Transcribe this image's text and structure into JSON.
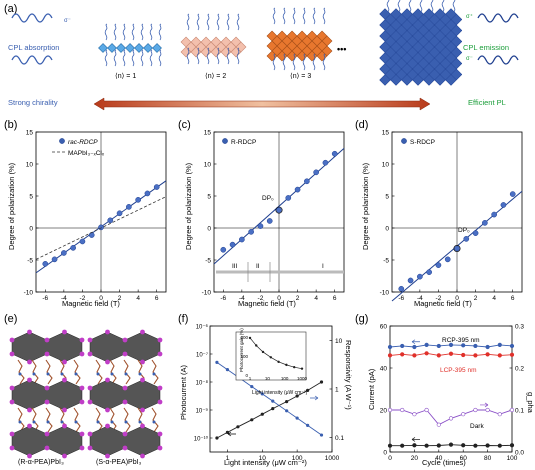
{
  "panel_letters": [
    "(a)",
    "(b)",
    "(c)",
    "(d)",
    "(e)",
    "(f)",
    "(g)"
  ],
  "panel_a": {
    "left_top": "CPL absorption",
    "left_bottom": "Strong chirality",
    "right_top": "CPL emission",
    "right_bottom": "Efficient PL",
    "n1": "⟨n⟩ = 1",
    "n2": "⟨n⟩ = 2",
    "n3": "⟨n⟩ = 3",
    "dots": "•••",
    "sigma_minus": "σ⁻",
    "sigma_plus": "σ⁺"
  },
  "panel_b": {
    "ylabel": "Degree of polarization (%)",
    "xlabel": "Magnetic field (T)",
    "legend_1": "rac-RDCP",
    "legend_2": "MAPbI₃₋ₓClₓ"
  },
  "panel_c": {
    "ylabel": "Degree of polarization (%)",
    "xlabel": "Magnetic field (T)",
    "legend_1": "R-RDCP",
    "annotation": "DP₀",
    "regions": [
      "III",
      "II",
      "I"
    ]
  },
  "panel_d": {
    "ylabel": "Degree of polarization (%)",
    "xlabel": "Magnetic field (T)",
    "legend_1": "S-RDCP",
    "annotation": "DP₀"
  },
  "panel_e": {
    "label_left": "(R-α-PEA)PbI₃",
    "label_right": "(S-α-PEA)PbI₃"
  },
  "panel_f": {
    "ylabel_left": "Photocurrent (A)",
    "ylabel_right": "Responsivity (A W⁻¹)",
    "xlabel": "Light intensity (μW cm⁻²)",
    "inset_ylabel": "Photocurrent gain (%)",
    "inset_xlabel": "Light intensity (μW cm⁻²)"
  },
  "panel_g": {
    "ylabel_left": "Current (pA)",
    "ylabel_right": "g_pha",
    "xlabel": "Cycle (times)",
    "series_rcp": "RCP-395 nm",
    "series_lcp": "LCP-395 nm",
    "series_dark": "Dark"
  },
  "colors": {
    "blue": "#3a5fb0",
    "red": "#e0302a",
    "purple": "#8a4fc7",
    "orange": "#e8772e",
    "green": "#1b9e3a",
    "navy": "#1f3f8f"
  },
  "chart_data": [
    {
      "panel": "b",
      "type": "scatter",
      "xlabel": "Magnetic field (T)",
      "ylabel": "Degree of polarization (%)",
      "xlim": [
        -7,
        7
      ],
      "ylim": [
        -10,
        15
      ],
      "x_ticks": [
        -6,
        -4,
        -2,
        0,
        2,
        4,
        6
      ],
      "y_ticks": [
        -10,
        -5,
        0,
        5,
        10,
        15
      ],
      "series": [
        {
          "name": "rac-RDCP",
          "x": [
            -6,
            -5,
            -4,
            -3,
            -2,
            -1,
            0,
            1,
            2,
            3,
            4,
            5,
            6
          ],
          "y": [
            -5.6,
            -4.9,
            -3.9,
            -3.1,
            -2.1,
            -1.1,
            0.1,
            1.2,
            2.3,
            3.3,
            4.4,
            5.4,
            6.4
          ]
        },
        {
          "name": "MAPbI₃₋ₓClₓ",
          "fit": true,
          "x": [
            -7,
            7
          ],
          "y": [
            -4.9,
            4.9
          ]
        }
      ]
    },
    {
      "panel": "c",
      "type": "scatter",
      "xlabel": "Magnetic field (T)",
      "ylabel": "Degree of polarization (%)",
      "xlim": [
        -7,
        7
      ],
      "ylim": [
        -10,
        15
      ],
      "x_ticks": [
        -6,
        -4,
        -2,
        0,
        2,
        4,
        6
      ],
      "y_ticks": [
        -10,
        -5,
        0,
        5,
        10,
        15
      ],
      "series": [
        {
          "name": "R-RDCP",
          "x": [
            -6,
            -5,
            -4,
            -3,
            -2,
            -1,
            0,
            1,
            2,
            3,
            4,
            5,
            6
          ],
          "y": [
            -3.4,
            -2.6,
            -1.8,
            -0.6,
            0.3,
            1.1,
            2.8,
            4.7,
            6.0,
            7.3,
            8.7,
            10.2,
            11.6
          ]
        }
      ]
    },
    {
      "panel": "d",
      "type": "scatter",
      "xlabel": "Magnetic field (T)",
      "ylabel": "Degree of polarization (%)",
      "xlim": [
        -7,
        7
      ],
      "ylim": [
        -10,
        15
      ],
      "x_ticks": [
        -6,
        -4,
        -2,
        0,
        2,
        4,
        6
      ],
      "y_ticks": [
        -10,
        -5,
        0,
        5,
        10,
        15
      ],
      "series": [
        {
          "name": "S-RDCP",
          "x": [
            -6,
            -5,
            -4,
            -3,
            -2,
            -1,
            0,
            1,
            2,
            3,
            4,
            5,
            6
          ],
          "y": [
            -9.5,
            -8.2,
            -7.6,
            -6.9,
            -5.8,
            -4.9,
            -3.2,
            -1.7,
            -0.8,
            0.8,
            2.1,
            3.6,
            5.3
          ]
        }
      ]
    },
    {
      "panel": "f",
      "type": "line",
      "xlabel": "Light intensity (μW cm⁻²)",
      "ylabel": "Photocurrent (A)",
      "x_ticks": [
        1,
        10,
        100,
        1000
      ],
      "y_ticks_left": [
        "10⁻¹⁰",
        "10⁻⁹",
        "10⁻⁸",
        "10⁻⁷",
        "10⁻⁶"
      ],
      "y_ticks_right": [
        "0.1",
        "1",
        "10"
      ],
      "series": [
        {
          "name": "Photocurrent",
          "axis": "left",
          "x": [
            0.5,
            1,
            2,
            5,
            10,
            20,
            50,
            100,
            200,
            500
          ],
          "y_log10": [
            -10.0,
            -9.8,
            -9.6,
            -9.35,
            -9.15,
            -8.95,
            -8.7,
            -8.5,
            -8.3,
            -8.0
          ]
        },
        {
          "name": "Responsivity",
          "axis": "right",
          "x": [
            0.5,
            1,
            2,
            5,
            10,
            20,
            50,
            100,
            200,
            500
          ],
          "y_log10": [
            0.55,
            0.4,
            0.25,
            0.05,
            -0.1,
            -0.25,
            -0.45,
            -0.6,
            -0.75,
            -0.95
          ]
        }
      ]
    },
    {
      "panel": "g",
      "type": "line",
      "xlabel": "Cycle (times)",
      "ylabel": "Current (pA)",
      "xlim": [
        0,
        100
      ],
      "ylim": [
        0,
        60
      ],
      "x_ticks": [
        0,
        20,
        40,
        60,
        80,
        100
      ],
      "y_ticks_left": [
        0,
        20,
        40,
        60
      ],
      "y_ticks_right": [
        0.0,
        0.1,
        0.2,
        0.3
      ],
      "series": [
        {
          "name": "RCP-395 nm",
          "x": [
            0,
            10,
            20,
            30,
            40,
            50,
            60,
            70,
            80,
            90,
            100
          ],
          "y": [
            50,
            50.5,
            50,
            51,
            50.5,
            51,
            50.8,
            50.5,
            50,
            51,
            50.5
          ]
        },
        {
          "name": "LCP-395 nm",
          "x": [
            0,
            10,
            20,
            30,
            40,
            50,
            60,
            70,
            80,
            90,
            100
          ],
          "y": [
            46,
            46.5,
            46,
            47,
            46,
            46.8,
            46.2,
            46,
            46.5,
            46,
            46.3
          ]
        },
        {
          "name": "g_pha",
          "axis": "right",
          "x": [
            0,
            10,
            20,
            30,
            40,
            50,
            60,
            70,
            80,
            90,
            100
          ],
          "y": [
            0.1,
            0.1,
            0.09,
            0.1,
            0.065,
            0.08,
            0.09,
            0.1,
            0.1,
            0.09,
            0.1
          ]
        },
        {
          "name": "Dark",
          "x": [
            0,
            10,
            20,
            30,
            40,
            50,
            60,
            70,
            80,
            90,
            100
          ],
          "y": [
            3,
            3,
            3.2,
            3,
            3.1,
            3.5,
            3.2,
            3,
            3.1,
            3,
            3.2
          ]
        }
      ]
    }
  ]
}
